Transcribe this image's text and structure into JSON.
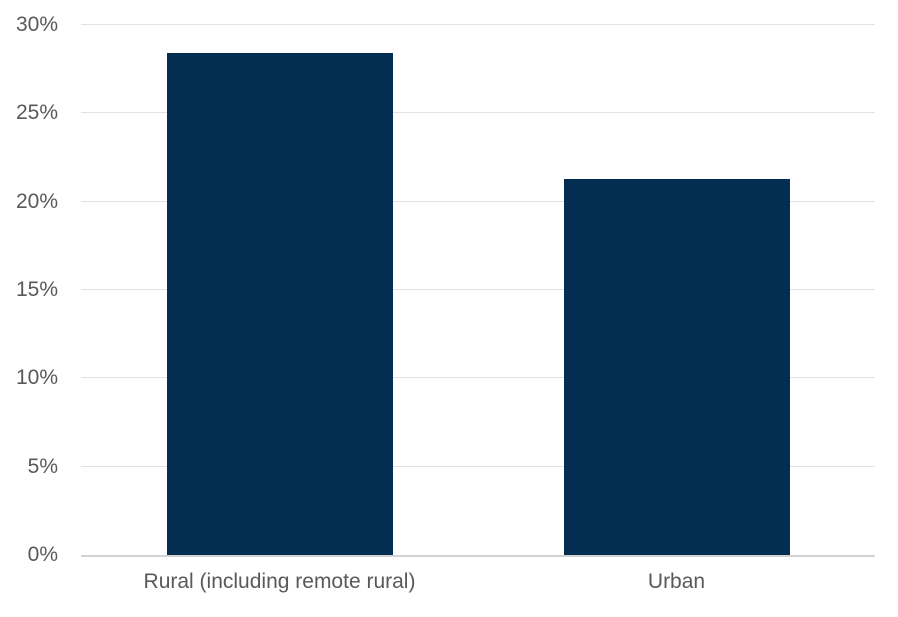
{
  "chart_data": {
    "type": "bar",
    "categories": [
      "Rural (including remote rural)",
      "Urban"
    ],
    "values": [
      28.4,
      21.3
    ],
    "title": "",
    "xlabel": "",
    "ylabel": "",
    "ylim": [
      0,
      30
    ],
    "ytick_step": 5,
    "ytick_suffix": "%",
    "ytick_labels": [
      "0%",
      "5%",
      "10%",
      "15%",
      "20%",
      "25%",
      "30%"
    ],
    "grid": true,
    "legend": "none",
    "colors": {
      "bar": "#032e52",
      "gridline": "#e2e2e2",
      "axis_line": "#d2d2d2",
      "tick_label": "#595959",
      "background": "#ffffff"
    }
  }
}
